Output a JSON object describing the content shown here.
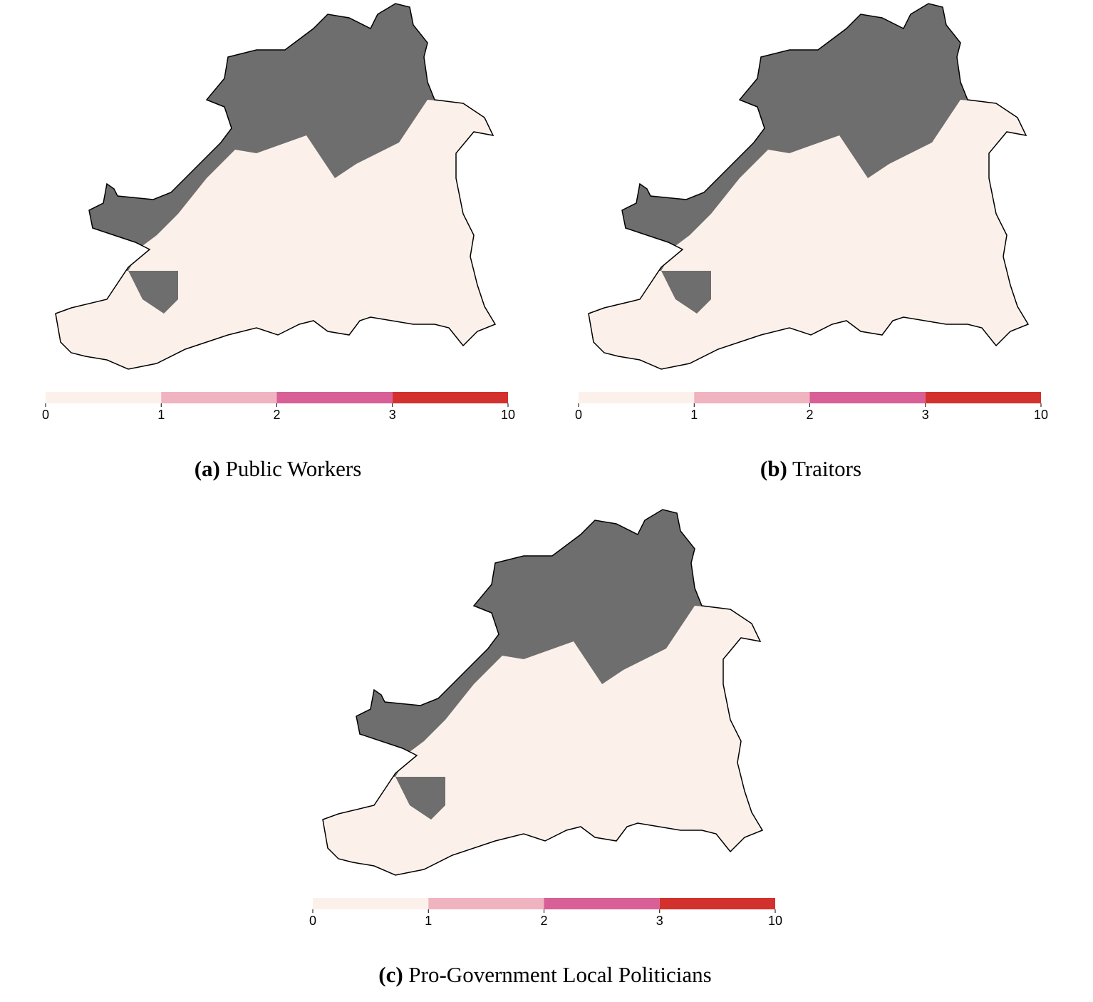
{
  "missing_color": "#6e6e6e",
  "panels": [
    {
      "label": "(a)",
      "caption": "Public Workers",
      "legend": {
        "breaks": [
          0,
          1,
          2,
          3,
          10
        ],
        "colors": [
          "#fcf1ea",
          "#f0b3c0",
          "#d95f97",
          "#d3312e"
        ]
      }
    },
    {
      "label": "(b)",
      "caption": "Traitors",
      "legend": {
        "breaks": [
          0,
          1,
          2,
          3,
          10
        ],
        "colors": [
          "#fcf1ea",
          "#f0b3c0",
          "#d95f97",
          "#d3312e"
        ]
      }
    },
    {
      "label": "(c)",
      "caption": "Pro-Government Local Politicians",
      "legend": {
        "breaks": [
          0,
          1,
          2,
          3,
          10
        ],
        "colors": [
          "#fcf1ea",
          "#f0b3c0",
          "#d95f97",
          "#d3312e"
        ]
      }
    }
  ]
}
